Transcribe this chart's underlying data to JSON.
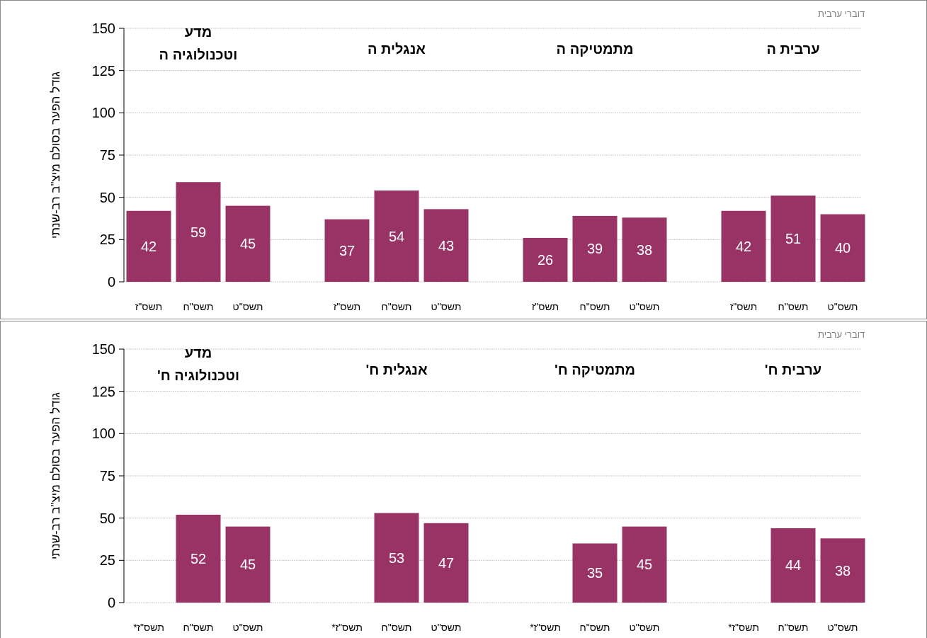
{
  "chart_data": [
    {
      "type": "bar",
      "title": "דוברי ערבית",
      "ylabel": "גודל הפער בסולם מיצ\"ב רב-שנתי",
      "categories": [
        "תשס\"ז",
        "תשס\"ח",
        "תשס\"ט",
        null,
        "תשס\"ז",
        "תשס\"ח",
        "תשס\"ט",
        null,
        "תשס\"ז",
        "תשס\"ח",
        "תשס\"ט",
        null,
        "תשס\"ז",
        "תשס\"ח",
        "תשס\"ט"
      ],
      "values": [
        42,
        59,
        45,
        null,
        37,
        54,
        43,
        null,
        26,
        39,
        38,
        null,
        42,
        51,
        40
      ],
      "color": "#993366",
      "ylim": [
        0,
        150
      ],
      "yticks": [
        0,
        25,
        50,
        75,
        100,
        125,
        150
      ],
      "grid": "y",
      "data_labels": true,
      "annotations": [
        "מדע וטכנולוגיה ה",
        "אנגלית ה",
        "מתמטיקה ה",
        "ערבית ה"
      ]
    },
    {
      "type": "bar",
      "title": "דוברי ערבית",
      "ylabel": "גודל הפער בסולם מיצ\"ב רב-שנתי",
      "categories": [
        "תשס\"ז*",
        "תשס\"ח",
        "תשס\"ט",
        null,
        "תשס\"ז*",
        "תשס\"ח",
        "תשס\"ט",
        null,
        "תשס\"ז*",
        "תשס\"ח",
        "תשס\"ט",
        null,
        "תשס\"ז*",
        "תשס\"ח",
        "תשס\"ט"
      ],
      "values": [
        null,
        52,
        45,
        null,
        null,
        53,
        47,
        null,
        null,
        35,
        45,
        null,
        null,
        44,
        38
      ],
      "color": "#993366",
      "ylim": [
        0,
        150
      ],
      "yticks": [
        0,
        25,
        50,
        75,
        100,
        125,
        150
      ],
      "grid": "y",
      "data_labels": true,
      "annotations": [
        "מדע וטכנולוגיה ח'",
        "אנגלית ח'",
        "מתמטיקה ח'",
        "ערבית ח'"
      ]
    }
  ]
}
